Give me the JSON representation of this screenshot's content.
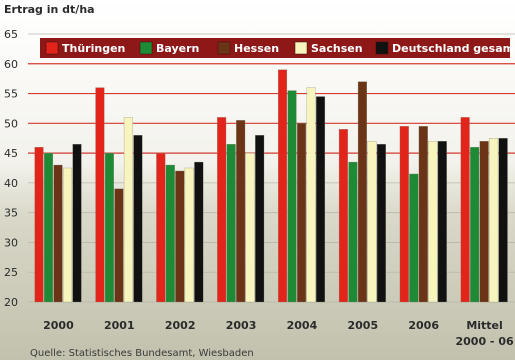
{
  "chart_data": {
    "type": "bar",
    "ylabel": "Ertrag in dt/ha",
    "ylim": [
      20,
      65
    ],
    "yticks": [
      20,
      25,
      30,
      35,
      40,
      45,
      50,
      55,
      60,
      65
    ],
    "grid": true,
    "legend_position": "top",
    "categories": [
      "2000",
      "2001",
      "2002",
      "2003",
      "2004",
      "2005",
      "2006",
      "Mittel 2000 - 06"
    ],
    "category_lines": [
      [
        "2000"
      ],
      [
        "2001"
      ],
      [
        "2002"
      ],
      [
        "2003"
      ],
      [
        "2004"
      ],
      [
        "2005"
      ],
      [
        "2006"
      ],
      [
        "Mittel",
        "2000 - 06"
      ]
    ],
    "series": [
      {
        "name": "Thüringen",
        "color": "#e3241b",
        "values": [
          46,
          56,
          45,
          51,
          59,
          49,
          49.5,
          51
        ]
      },
      {
        "name": "Bayern",
        "color": "#1e8a35",
        "values": [
          45,
          45,
          43,
          46.5,
          55.5,
          43.5,
          41.5,
          46
        ]
      },
      {
        "name": "Hessen",
        "color": "#6b3416",
        "values": [
          43,
          39,
          42,
          50.5,
          50,
          57,
          49.5,
          47
        ]
      },
      {
        "name": "Sachsen",
        "color": "#f8f4be",
        "values": [
          42.5,
          51,
          42.5,
          45,
          56,
          47,
          47,
          47.5
        ]
      },
      {
        "name": "Deutschland gesamt",
        "color": "#111111",
        "values": [
          46.5,
          48,
          43.5,
          48,
          54.5,
          46.5,
          47,
          47.5
        ]
      }
    ],
    "source": "Quelle: Statistisches Bundesamt, Wiesbaden"
  },
  "colors": {
    "legend_bg": "#8e1818",
    "plot_bg_top": "#ffffff",
    "plot_bg_bottom": "#c9c8b6",
    "grid_red": "#d33a32",
    "grid_gray": "#b8b7aa"
  }
}
